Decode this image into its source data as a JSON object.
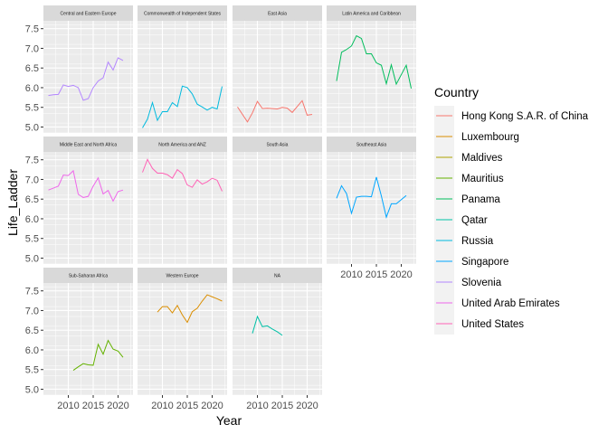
{
  "chart_data": {
    "type": "line",
    "faceted": true,
    "xlabel": "Year",
    "ylabel": "Life_Ladder",
    "xlim": [
      2005,
      2023
    ],
    "ylim": [
      4.85,
      7.7
    ],
    "x_ticks": [
      2010,
      2015,
      2020
    ],
    "y_ticks": [
      5.0,
      5.5,
      6.0,
      6.5,
      7.0,
      7.5
    ],
    "y_tick_labels": [
      "5.0",
      "5.5",
      "6.0",
      "6.5",
      "7.0",
      "7.5"
    ],
    "legend": {
      "title": "Country",
      "position": "right",
      "items": [
        {
          "name": "Hong Kong S.A.R. of China",
          "color": "#F8766D"
        },
        {
          "name": "Luxembourg",
          "color": "#DB8E00"
        },
        {
          "name": "Maldives",
          "color": "#AEA200"
        },
        {
          "name": "Mauritius",
          "color": "#64B200"
        },
        {
          "name": "Panama",
          "color": "#00BD5C"
        },
        {
          "name": "Qatar",
          "color": "#00C1A7"
        },
        {
          "name": "Russia",
          "color": "#00BADE"
        },
        {
          "name": "Singapore",
          "color": "#00A6FF"
        },
        {
          "name": "Slovenia",
          "color": "#B385FF"
        },
        {
          "name": "United Arab Emirates",
          "color": "#EF67EB"
        },
        {
          "name": "United States",
          "color": "#FF63B6"
        }
      ]
    },
    "facets": [
      {
        "title": "Central and Eastern Europe",
        "series": [
          {
            "country": "Slovenia",
            "color": "#B385FF",
            "x": [
              2006,
              2007,
              2008,
              2009,
              2010,
              2011,
              2012,
              2013,
              2014,
              2015,
              2016,
              2017,
              2018,
              2019,
              2020,
              2021,
              2022
            ],
            "y": [
              5.8,
              5.82,
              5.83,
              6.07,
              6.03,
              6.06,
              6.0,
              5.68,
              5.72,
              6.0,
              6.17,
              6.25,
              6.65,
              6.45,
              6.76,
              6.69,
              null
            ]
          }
        ]
      },
      {
        "title": "Commonwealth of Independent States",
        "series": [
          {
            "country": "Russia",
            "color": "#00BADE",
            "x": [
              2006,
              2007,
              2008,
              2009,
              2010,
              2011,
              2012,
              2013,
              2014,
              2015,
              2016,
              2017,
              2018,
              2019,
              2020,
              2021,
              2022
            ],
            "y": [
              4.98,
              5.2,
              5.62,
              5.17,
              5.39,
              5.39,
              5.62,
              5.52,
              6.04,
              6.0,
              5.84,
              5.58,
              5.51,
              5.43,
              5.5,
              5.46,
              6.03
            ]
          }
        ]
      },
      {
        "title": "East Asia",
        "series": [
          {
            "country": "Hong Kong S.A.R. of China",
            "color": "#F8766D",
            "x": [
              2006,
              2008,
              2009,
              2010,
              2011,
              2012,
              2014,
              2015,
              2016,
              2017,
              2019,
              2020,
              2021
            ],
            "y": [
              5.51,
              5.13,
              5.36,
              5.65,
              5.47,
              5.48,
              5.46,
              5.5,
              5.48,
              5.37,
              5.67,
              5.3,
              5.32
            ]
          }
        ]
      },
      {
        "title": "Latin America and Caribbean",
        "series": [
          {
            "country": "Panama",
            "color": "#00BD5C",
            "x": [
              2007,
              2008,
              2009,
              2010,
              2011,
              2012,
              2013,
              2014,
              2015,
              2016,
              2017,
              2018,
              2019,
              2021,
              2022
            ],
            "y": [
              6.17,
              6.9,
              6.97,
              7.06,
              7.32,
              7.25,
              6.86,
              6.86,
              6.63,
              6.57,
              6.1,
              6.58,
              6.09,
              6.57,
              5.98
            ]
          }
        ]
      },
      {
        "title": "Middle East and North Africa",
        "series": [
          {
            "country": "United Arab Emirates",
            "color": "#EF67EB",
            "x": [
              2006,
              2007,
              2008,
              2009,
              2010,
              2011,
              2012,
              2013,
              2014,
              2015,
              2016,
              2017,
              2018,
              2019,
              2020,
              2021,
              2022
            ],
            "y": [
              6.73,
              6.78,
              6.83,
              7.11,
              7.1,
              7.22,
              6.62,
              6.54,
              6.57,
              6.83,
              7.04,
              6.63,
              6.72,
              6.45,
              6.69,
              6.73,
              null
            ]
          }
        ]
      },
      {
        "title": "North America and ANZ",
        "series": [
          {
            "country": "United States",
            "color": "#FF63B6",
            "x": [
              2006,
              2007,
              2008,
              2009,
              2010,
              2011,
              2012,
              2013,
              2014,
              2015,
              2016,
              2017,
              2018,
              2019,
              2020,
              2021,
              2022
            ],
            "y": [
              7.18,
              7.51,
              7.28,
              7.16,
              7.16,
              7.12,
              7.03,
              7.25,
              7.15,
              6.86,
              6.8,
              6.99,
              6.88,
              6.94,
              7.03,
              6.98,
              6.7
            ]
          }
        ]
      },
      {
        "title": "South Asia",
        "series": []
      },
      {
        "title": "Southeast Asia",
        "series": [
          {
            "country": "Singapore",
            "color": "#00A6FF",
            "x": [
              2007,
              2008,
              2009,
              2010,
              2011,
              2012,
              2013,
              2014,
              2015,
              2016,
              2017,
              2018,
              2019,
              2021
            ],
            "y": [
              6.52,
              6.84,
              6.64,
              6.14,
              6.55,
              6.57,
              6.57,
              6.56,
              7.06,
              6.58,
              6.04,
              6.38,
              6.38,
              6.59
            ]
          }
        ]
      },
      {
        "title": "Sub-Saharan Africa",
        "series": [
          {
            "country": "Mauritius",
            "color": "#64B200",
            "x": [
              2011,
              2012,
              2013,
              2014,
              2015,
              2016,
              2017,
              2018,
              2019,
              2020,
              2021,
              2022
            ],
            "y": [
              5.48,
              5.57,
              5.65,
              5.62,
              5.61,
              6.14,
              5.89,
              6.24,
              6.02,
              5.97,
              5.81,
              null
            ]
          }
        ]
      },
      {
        "title": "Western Europe",
        "series": [
          {
            "country": "Luxembourg",
            "color": "#DB8E00",
            "x": [
              2009,
              2010,
              2011,
              2012,
              2013,
              2014,
              2015,
              2016,
              2017,
              2018,
              2019,
              2020,
              2021,
              2022
            ],
            "y": [
              6.96,
              7.1,
              7.1,
              6.94,
              7.13,
              6.89,
              6.7,
              6.97,
              7.06,
              7.24,
              7.4,
              7.35,
              7.3,
              7.24
            ]
          }
        ]
      },
      {
        "title": "NA",
        "series": [
          {
            "country": "Qatar",
            "color": "#00C1A7",
            "x": [
              2009,
              2010,
              2011,
              2012,
              2013,
              2014,
              2015
            ],
            "y": [
              6.42,
              6.85,
              6.59,
              6.61,
              6.53,
              6.46,
              6.37
            ]
          }
        ]
      }
    ]
  }
}
